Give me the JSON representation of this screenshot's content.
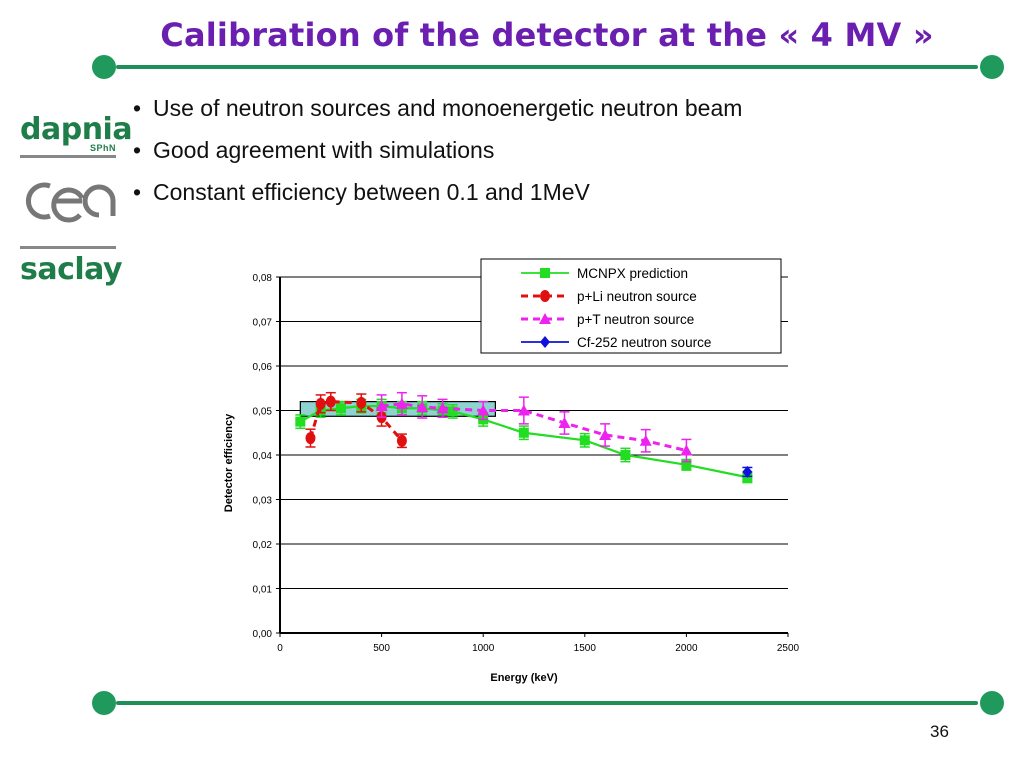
{
  "slide": {
    "title": "Calibration of the detector at the « 4 MV »",
    "bullets": [
      "Use of neutron sources and monoenergetic neutron beam",
      "Good agreement with simulations",
      "Constant efficiency between 0.1 and 1MeV"
    ],
    "page_number": "36",
    "logos": {
      "dapnia": "dapnia",
      "sphn": "SPhN",
      "cea": "cea",
      "saclay": "saclay"
    },
    "colors": {
      "title": "#6a1fb0",
      "rule": "#1f8f5a",
      "logo_green": "#1f7d4a"
    }
  },
  "chart_data": {
    "type": "scatter",
    "xlabel": "Energy (keV)",
    "ylabel": "Detector efficiency",
    "xlim": [
      0,
      2500
    ],
    "ylim": [
      0,
      0.08
    ],
    "xticks": [
      0,
      500,
      1000,
      1500,
      2000,
      2500
    ],
    "xtick_labels": [
      "0",
      "500",
      "1000",
      "1500",
      "2000",
      "2500"
    ],
    "yticks": [
      0,
      0.01,
      0.02,
      0.03,
      0.04,
      0.05,
      0.06,
      0.07,
      0.08
    ],
    "ytick_labels": [
      "0,00",
      "0,01",
      "0,02",
      "0,03",
      "0,04",
      "0,05",
      "0,06",
      "0,07",
      "0,08"
    ],
    "grid": "horizontal",
    "legend_position": "top-right",
    "highlight_band": {
      "x": [
        100,
        1060
      ],
      "y": [
        0.0487,
        0.052
      ],
      "color": "#8fd3d0"
    },
    "series": [
      {
        "name": "MCNPX prediction",
        "marker": "square",
        "line": "solid",
        "color": "#22dd22",
        "x": [
          100,
          200,
          300,
          400,
          500,
          600,
          700,
          800,
          850,
          1000,
          1200,
          1500,
          1700,
          2000,
          2300
        ],
        "y": [
          0.0475,
          0.05,
          0.0505,
          0.051,
          0.051,
          0.0505,
          0.0505,
          0.05,
          0.0498,
          0.048,
          0.045,
          0.0433,
          0.04,
          0.0378,
          0.035
        ],
        "err": [
          0.0015,
          0.0015,
          0.0015,
          0.0015,
          0.0015,
          0.0015,
          0.0015,
          0.0015,
          0.0015,
          0.0015,
          0.0015,
          0.0015,
          0.0015,
          0.0012,
          0.0012
        ]
      },
      {
        "name": "p+Li neutron source",
        "marker": "circle",
        "line": "dashed",
        "color": "#e01010",
        "x": [
          150,
          200,
          250,
          400,
          500,
          600
        ],
        "y": [
          0.0438,
          0.0515,
          0.052,
          0.0517,
          0.0485,
          0.0432
        ],
        "err": [
          0.002,
          0.002,
          0.002,
          0.002,
          0.002,
          0.0015
        ]
      },
      {
        "name": "p+T neutron source",
        "marker": "triangle",
        "line": "dashed",
        "color": "#ee22ee",
        "x": [
          500,
          600,
          700,
          800,
          1000,
          1200,
          1400,
          1600,
          1800,
          2000
        ],
        "y": [
          0.051,
          0.0515,
          0.0508,
          0.0505,
          0.05,
          0.05,
          0.0472,
          0.0445,
          0.0432,
          0.041
        ],
        "err": [
          0.0025,
          0.0025,
          0.0025,
          0.002,
          0.002,
          0.003,
          0.0025,
          0.0025,
          0.0025,
          0.0025
        ]
      },
      {
        "name": "Cf-252 neutron source",
        "marker": "diamond",
        "line": "solid",
        "color": "#1010dd",
        "x": [
          2300
        ],
        "y": [
          0.0362
        ],
        "err": [
          0.001
        ]
      }
    ]
  }
}
